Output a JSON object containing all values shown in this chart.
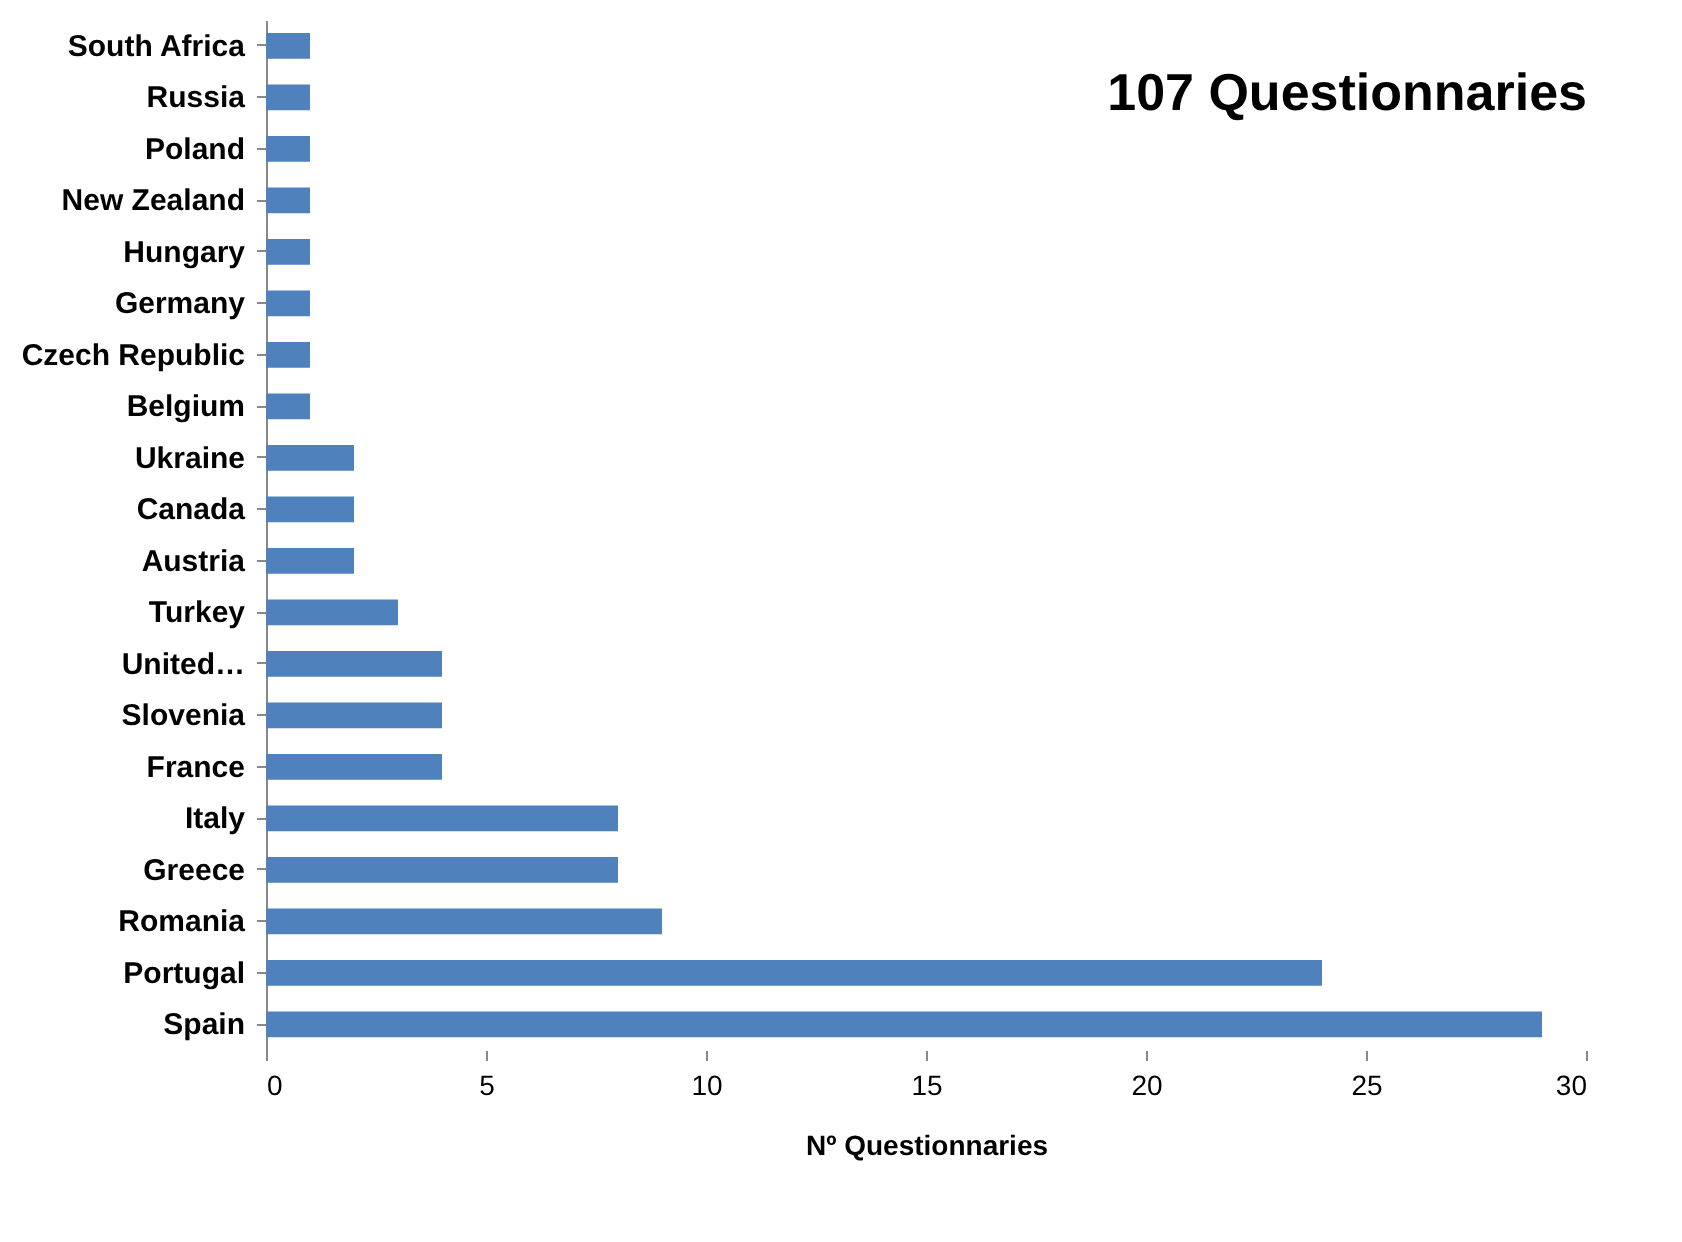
{
  "chart_data": {
    "type": "bar",
    "orientation": "horizontal",
    "title": "107 Questionnaries",
    "xlabel": "Nº Questionnaries",
    "categories": [
      "South Africa",
      "Russia",
      "Poland",
      "New Zealand",
      "Hungary",
      "Germany",
      "Czech Republic",
      "Belgium",
      "Ukraine",
      "Canada",
      "Austria",
      "Turkey",
      "United…",
      "Slovenia",
      "France",
      "Italy",
      "Greece",
      "Romania",
      "Portugal",
      "Spain"
    ],
    "values": [
      1,
      1,
      1,
      1,
      1,
      1,
      1,
      1,
      2,
      2,
      2,
      3,
      4,
      4,
      4,
      8,
      8,
      9,
      24,
      29
    ],
    "color": "#4f81bd",
    "xlim": [
      0,
      30
    ],
    "xticks": [
      0,
      5,
      10,
      15,
      20,
      25,
      30
    ],
    "grid": false
  }
}
